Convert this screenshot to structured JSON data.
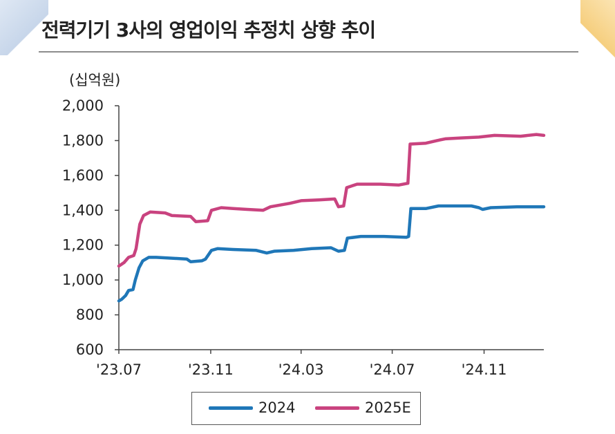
{
  "title": "전력기기 3사의 영업이익 추정치 상향 추이",
  "chart_data": {
    "type": "line",
    "title": "전력기기 3사의 영업이익 추정치 상향 추이",
    "unit_label": "(십억원)",
    "xlabel": "",
    "ylabel": "",
    "ylim": [
      600,
      2000
    ],
    "yticks": [
      "600",
      "800",
      "1,000",
      "1,200",
      "1,400",
      "1,600",
      "1,800",
      "2,000"
    ],
    "ytick_values": [
      600,
      800,
      1000,
      1200,
      1400,
      1600,
      1800,
      2000
    ],
    "xticks": [
      "'23.07",
      "'23.11",
      "'24.03",
      "'24.07",
      "'24.11"
    ],
    "xtick_dates": [
      "2023-07-01",
      "2023-11-01",
      "2024-03-01",
      "2024-07-01",
      "2024-11-01"
    ],
    "xlim": [
      "2023-07-01",
      "2025-01-20"
    ],
    "grid": false,
    "legend_position": "bottom",
    "series": [
      {
        "name": "2024",
        "color": "#1f77b8",
        "points": [
          [
            "2023-07-01",
            880
          ],
          [
            "2023-07-05",
            890
          ],
          [
            "2023-07-10",
            910
          ],
          [
            "2023-07-14",
            940
          ],
          [
            "2023-07-20",
            945
          ],
          [
            "2023-07-23",
            1000
          ],
          [
            "2023-07-28",
            1070
          ],
          [
            "2023-08-02",
            1110
          ],
          [
            "2023-08-10",
            1130
          ],
          [
            "2023-08-20",
            1130
          ],
          [
            "2023-09-10",
            1125
          ],
          [
            "2023-09-30",
            1120
          ],
          [
            "2023-10-05",
            1105
          ],
          [
            "2023-10-20",
            1110
          ],
          [
            "2023-10-25",
            1120
          ],
          [
            "2023-11-02",
            1170
          ],
          [
            "2023-11-10",
            1180
          ],
          [
            "2023-12-01",
            1175
          ],
          [
            "2024-01-01",
            1170
          ],
          [
            "2024-01-15",
            1155
          ],
          [
            "2024-01-25",
            1165
          ],
          [
            "2024-02-20",
            1170
          ],
          [
            "2024-03-15",
            1180
          ],
          [
            "2024-04-10",
            1185
          ],
          [
            "2024-04-20",
            1165
          ],
          [
            "2024-04-28",
            1170
          ],
          [
            "2024-05-02",
            1240
          ],
          [
            "2024-05-20",
            1250
          ],
          [
            "2024-06-20",
            1250
          ],
          [
            "2024-07-20",
            1245
          ],
          [
            "2024-07-23",
            1250
          ],
          [
            "2024-07-26",
            1410
          ],
          [
            "2024-08-15",
            1410
          ],
          [
            "2024-09-01",
            1425
          ],
          [
            "2024-10-15",
            1425
          ],
          [
            "2024-10-25",
            1415
          ],
          [
            "2024-10-30",
            1405
          ],
          [
            "2024-11-10",
            1415
          ],
          [
            "2024-12-15",
            1420
          ],
          [
            "2025-01-20",
            1420
          ]
        ]
      },
      {
        "name": "2025E",
        "color": "#c9437f",
        "points": [
          [
            "2023-07-01",
            1080
          ],
          [
            "2023-07-08",
            1100
          ],
          [
            "2023-07-14",
            1130
          ],
          [
            "2023-07-21",
            1140
          ],
          [
            "2023-07-24",
            1180
          ],
          [
            "2023-07-29",
            1320
          ],
          [
            "2023-08-03",
            1370
          ],
          [
            "2023-08-12",
            1390
          ],
          [
            "2023-09-01",
            1385
          ],
          [
            "2023-09-10",
            1370
          ],
          [
            "2023-10-05",
            1365
          ],
          [
            "2023-10-12",
            1335
          ],
          [
            "2023-10-28",
            1340
          ],
          [
            "2023-11-02",
            1400
          ],
          [
            "2023-11-15",
            1415
          ],
          [
            "2023-12-01",
            1410
          ],
          [
            "2023-12-20",
            1405
          ],
          [
            "2024-01-10",
            1400
          ],
          [
            "2024-01-20",
            1420
          ],
          [
            "2024-02-15",
            1440
          ],
          [
            "2024-03-01",
            1455
          ],
          [
            "2024-03-25",
            1460
          ],
          [
            "2024-04-15",
            1465
          ],
          [
            "2024-04-20",
            1420
          ],
          [
            "2024-04-27",
            1425
          ],
          [
            "2024-05-01",
            1530
          ],
          [
            "2024-05-15",
            1550
          ],
          [
            "2024-06-15",
            1550
          ],
          [
            "2024-07-10",
            1545
          ],
          [
            "2024-07-22",
            1555
          ],
          [
            "2024-07-25",
            1780
          ],
          [
            "2024-08-15",
            1785
          ],
          [
            "2024-08-30",
            1800
          ],
          [
            "2024-09-10",
            1810
          ],
          [
            "2024-10-01",
            1815
          ],
          [
            "2024-10-25",
            1820
          ],
          [
            "2024-11-15",
            1830
          ],
          [
            "2024-12-20",
            1825
          ],
          [
            "2025-01-10",
            1835
          ],
          [
            "2025-01-20",
            1830
          ]
        ]
      }
    ]
  },
  "legend": {
    "items": [
      {
        "label": "2024",
        "color": "#1f77b8"
      },
      {
        "label": "2025E",
        "color": "#c9437f"
      }
    ]
  }
}
